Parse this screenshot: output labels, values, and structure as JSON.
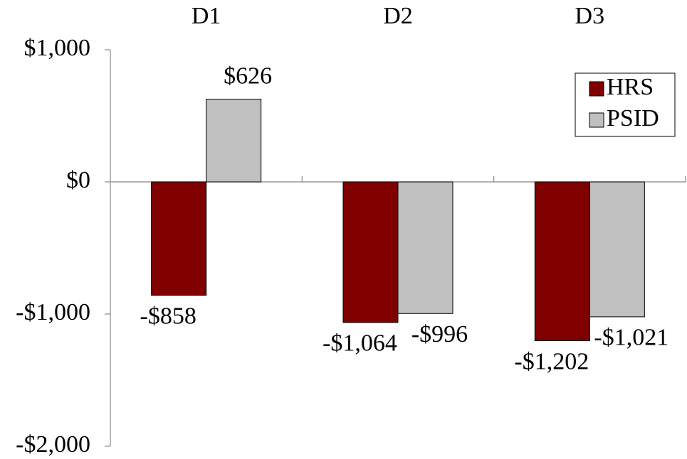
{
  "chart_data": {
    "type": "bar",
    "categories": [
      "D1",
      "D2",
      "D3"
    ],
    "series": [
      {
        "name": "HRS",
        "color": "#800000",
        "values": [
          -858,
          -1064,
          -1202
        ],
        "value_labels": [
          "-$858",
          "-$1,064",
          "-$1,202"
        ]
      },
      {
        "name": "PSID",
        "color": "#c0c0c0",
        "values": [
          626,
          -996,
          -1021
        ],
        "value_labels": [
          "$626",
          "-$996",
          "-$1,021"
        ]
      }
    ],
    "ylim": [
      -2000,
      1000
    ],
    "yticks": [
      {
        "value": -2000,
        "label": "-$2,000"
      },
      {
        "value": -1000,
        "label": "-$1,000"
      },
      {
        "value": 0,
        "label": "$0"
      },
      {
        "value": 1000,
        "label": "$1,000"
      }
    ],
    "grid": false,
    "legend": "upper right"
  }
}
